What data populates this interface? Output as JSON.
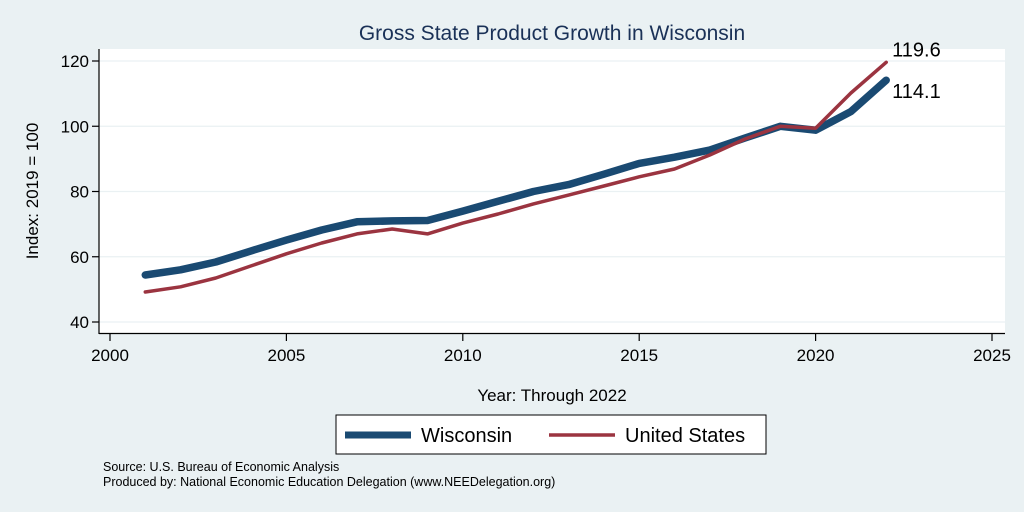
{
  "chart_data": {
    "type": "line",
    "title": "Gross State Product Growth in Wisconsin",
    "xlabel": "Year: Through 2022",
    "ylabel": "Index: 2019 = 100",
    "xlim": [
      2000,
      2025
    ],
    "ylim": [
      40,
      120
    ],
    "x_ticks": [
      2000,
      2005,
      2010,
      2015,
      2020,
      2025
    ],
    "x_tick_labels": [
      "2000",
      "2005",
      "2010",
      "2015",
      "2020",
      "2025"
    ],
    "y_ticks": [
      40,
      60,
      80,
      100,
      120
    ],
    "y_tick_labels": [
      "40",
      "60",
      "80",
      "100",
      "120"
    ],
    "grid": "horizontal",
    "legend_position": "bottom",
    "x": [
      2001,
      2002,
      2003,
      2004,
      2005,
      2006,
      2007,
      2008,
      2009,
      2010,
      2011,
      2012,
      2013,
      2014,
      2015,
      2016,
      2017,
      2018,
      2019,
      2020,
      2021,
      2022
    ],
    "series": [
      {
        "name": "Wisconsin",
        "color": "#1a4a72",
        "values": [
          54.4,
          56.0,
          58.4,
          61.8,
          65.1,
          68.2,
          70.7,
          71.0,
          71.1,
          74.0,
          77.0,
          80.0,
          82.1,
          85.3,
          88.6,
          90.5,
          92.7,
          96.4,
          100.0,
          98.8,
          104.5,
          114.1
        ],
        "end_label": "114.1"
      },
      {
        "name": "United States",
        "color": "#9b3440",
        "values": [
          49.2,
          50.8,
          53.5,
          57.2,
          60.9,
          64.2,
          67.0,
          68.5,
          67.0,
          70.3,
          73.1,
          76.2,
          78.9,
          81.7,
          84.5,
          86.9,
          91.2,
          96.1,
          100.0,
          99.4,
          110.2,
          119.6
        ],
        "end_label": "119.6"
      }
    ],
    "notes": [
      "Source: U.S. Bureau of Economic Analysis",
      "Produced by: National Economic Education Delegation (www.NEEDelegation.org)"
    ]
  },
  "colors": {
    "background": "#eaf1f3",
    "plot_background": "#ffffff",
    "title": "#1a3157",
    "grid": "#eaf1f3"
  }
}
